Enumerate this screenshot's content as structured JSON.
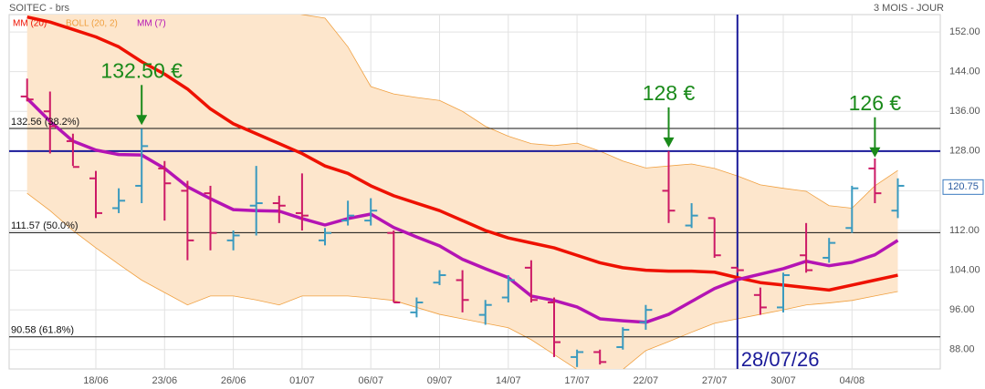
{
  "chart_data": {
    "type": "ohlc",
    "title": "SOITEC - brs",
    "subtitle": "3 MOIS - JOUR",
    "categories": [
      null,
      null,
      null,
      "18/06",
      null,
      null,
      "23/06",
      null,
      null,
      "26/06",
      null,
      null,
      "01/07",
      null,
      null,
      "06/07",
      null,
      null,
      "09/07",
      null,
      null,
      "14/07",
      null,
      null,
      "17/07",
      null,
      null,
      "22/07",
      null,
      null,
      "27/07",
      null,
      null,
      "30/07",
      null,
      null,
      "04/08",
      null,
      null
    ],
    "ohlc": {
      "up_color": "#3a9abf",
      "down_color": "#cc1a66",
      "open": [
        139.0,
        136.0,
        130.0,
        122.5,
        116.5,
        121.0,
        124.5,
        120.0,
        119.5,
        110.0,
        117.0,
        117.5,
        115.5,
        110.0,
        114.0,
        114.0,
        111.5,
        95.5,
        101.5,
        102.0,
        95.0,
        98.5,
        104.5,
        97.5,
        86.5,
        87.5,
        88.5,
        93.5,
        120.0,
        113.0,
        114.5,
        104.5,
        99.0,
        96.5,
        107.0,
        106.5,
        112.5,
        124.5,
        116.0
      ],
      "high": [
        142.6,
        140.0,
        131.5,
        124.0,
        120.5,
        132.5,
        126.0,
        122.0,
        121.0,
        112.0,
        125.0,
        119.0,
        123.5,
        112.5,
        118.0,
        118.5,
        112.0,
        98.5,
        104.0,
        104.0,
        98.0,
        103.0,
        106.0,
        98.5,
        88.0,
        88.0,
        92.5,
        97.0,
        128.0,
        117.5,
        114.5,
        104.5,
        100.5,
        103.5,
        113.5,
        110.5,
        121.0,
        126.5,
        122.5
      ],
      "low": [
        138.0,
        127.5,
        125.0,
        114.5,
        115.5,
        117.5,
        114.0,
        106.0,
        108.0,
        108.0,
        111.0,
        113.5,
        112.0,
        109.0,
        113.0,
        113.0,
        97.5,
        94.5,
        101.0,
        95.5,
        93.0,
        97.5,
        97.5,
        86.5,
        84.5,
        85.0,
        88.0,
        92.0,
        113.5,
        112.5,
        106.5,
        103.5,
        95.0,
        95.5,
        103.5,
        105.5,
        111.5,
        117.5,
        114.5
      ],
      "close": [
        138.4,
        133.0,
        124.8,
        115.5,
        118.0,
        129.0,
        121.5,
        110.0,
        111.5,
        111.0,
        117.5,
        117.0,
        115.0,
        111.5,
        115.0,
        116.0,
        97.5,
        97.5,
        103.0,
        98.0,
        97.0,
        102.0,
        98.0,
        89.5,
        87.5,
        85.5,
        92.0,
        96.0,
        116.0,
        115.0,
        107.0,
        104.0,
        96.5,
        103.0,
        104.0,
        109.5,
        120.5,
        119.5,
        121.0
      ]
    },
    "band": {
      "name": "BOLL (20, 2)",
      "color": "#f0a040",
      "fill": "#fde6cc",
      "upper": [
        175,
        173,
        171,
        170,
        169,
        168,
        166,
        164,
        162,
        160,
        158,
        156.5,
        155.5,
        154.8,
        149,
        141,
        139.5,
        138.8,
        138.2,
        136,
        133,
        131,
        129.5,
        129.1,
        129.6,
        128,
        126,
        124.6,
        125,
        125.4,
        124.5,
        123,
        121.2,
        120.5,
        119.9,
        117,
        116.5,
        121,
        124.1
      ],
      "lower": [
        119.5,
        116,
        112,
        108.5,
        105.2,
        102,
        99.5,
        97,
        98.8,
        98.8,
        98,
        97,
        98.8,
        98.8,
        98.8,
        98.4,
        97.9,
        96.5,
        95.1,
        94.2,
        93.3,
        92.4,
        90,
        87,
        84,
        83,
        84,
        87.8,
        89.6,
        91.5,
        93.3,
        94.2,
        95.1,
        96,
        97,
        97.4,
        97.9,
        98.8,
        99.7
      ]
    },
    "series": [
      {
        "name": "MM (20)",
        "color": "#ee1100",
        "values": [
          155.0,
          154,
          152.5,
          151,
          149,
          146,
          143.5,
          140.5,
          136.5,
          133.5,
          131.5,
          129.5,
          127.5,
          125,
          123.5,
          121,
          119,
          117.5,
          116,
          114,
          112,
          110.5,
          109.5,
          108.5,
          107,
          105.5,
          104.5,
          104,
          103.8,
          103.8,
          103.6,
          102.5,
          101.5,
          101,
          100.5,
          100,
          101,
          102,
          103
        ]
      },
      {
        "name": "MM (7)",
        "color": "#b414b4",
        "values": [
          138.6,
          134,
          130,
          128.2,
          127.3,
          127.2,
          124.5,
          120.8,
          118.4,
          116.2,
          116,
          115.9,
          114.4,
          113.1,
          114.4,
          115.3,
          112.6,
          110.7,
          108.9,
          106.2,
          104.3,
          102.5,
          98.8,
          97.9,
          96.6,
          94.2,
          93.8,
          93.5,
          95.1,
          97.7,
          100.3,
          102.1,
          103.2,
          104.3,
          105.8,
          104.9,
          105.6,
          107.1,
          110.0
        ]
      }
    ],
    "levels": [
      {
        "value": 132.56,
        "label": "132.56  (38.2%)"
      },
      {
        "value": 111.57,
        "label": "111.57  (50.0%)"
      },
      {
        "value": 90.58,
        "label": "90.58  (61.8%)"
      }
    ],
    "crosshair": {
      "value": 128,
      "index": 31,
      "label": "28/07/26",
      "color": "#1a1a99"
    },
    "annotations": [
      {
        "text": "132.50 €",
        "index": 5,
        "value": 132.5
      },
      {
        "text": "128 €",
        "index": 28,
        "value": 128
      },
      {
        "text": "126 €",
        "index": 37,
        "value": 126
      }
    ],
    "annotation_color": "#1a8a1a",
    "last_price": {
      "value": 120.75,
      "label": "120.75"
    },
    "ylim": [
      84.1,
      155.5
    ],
    "yticks": [
      {
        "value": 152,
        "label": "152.00"
      },
      {
        "value": 144,
        "label": "144.00"
      },
      {
        "value": 136,
        "label": "136.00"
      },
      {
        "value": 128,
        "label": "128.00"
      },
      {
        "value": 120,
        "label": "120.00"
      },
      {
        "value": 112,
        "label": "112.00"
      },
      {
        "value": 104,
        "label": "104.00"
      },
      {
        "value": 96,
        "label": "96.00"
      },
      {
        "value": 88,
        "label": "88.00"
      }
    ],
    "grid": true
  }
}
